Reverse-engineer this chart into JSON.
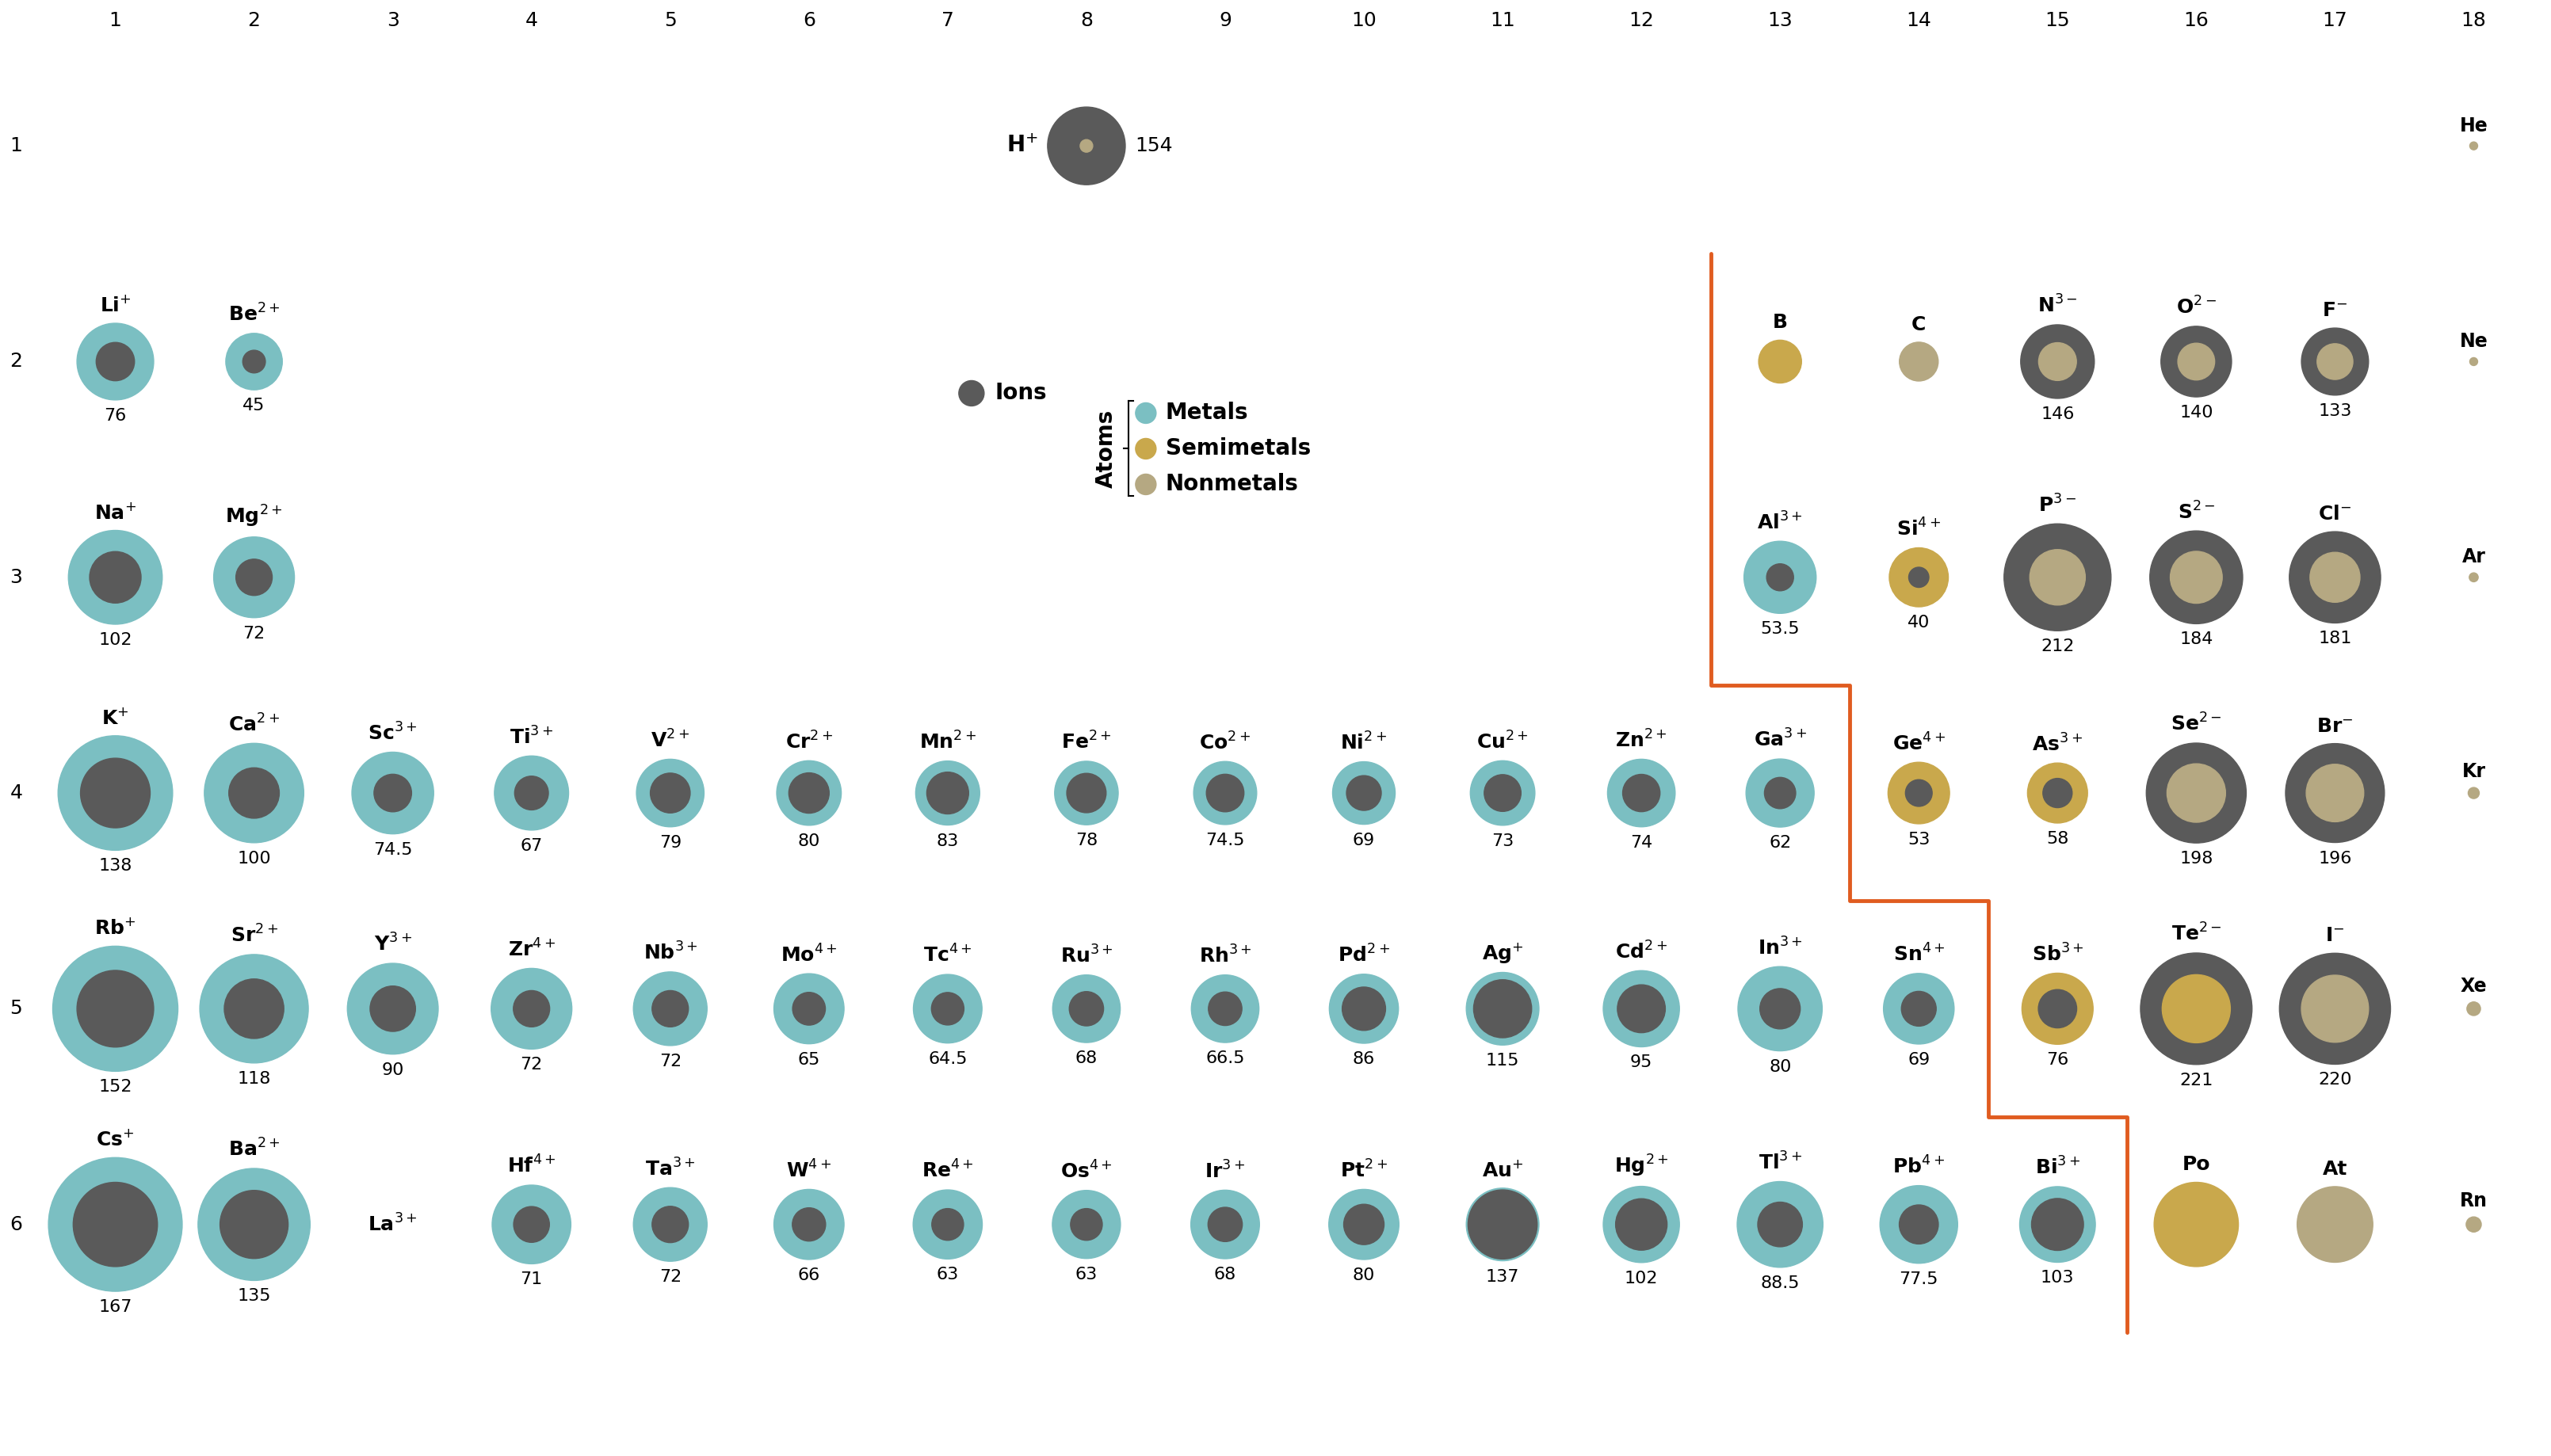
{
  "bg_color": "#ffffff",
  "ion_color": "#5a5a5a",
  "metal_atom_color": "#7bbfc2",
  "semimetal_atom_color": "#c9a84c",
  "nonmetal_atom_color": "#b5a882",
  "col_headers": [
    "1",
    "2",
    "3",
    "4",
    "5",
    "6",
    "7",
    "8",
    "9",
    "10",
    "11",
    "12",
    "13",
    "14",
    "15",
    "16",
    "17",
    "18"
  ],
  "row_headers": [
    "1",
    "2",
    "3",
    "4",
    "5",
    "6"
  ],
  "elements": [
    {
      "symbol": "H",
      "charge": "+",
      "col": 8,
      "row": 1,
      "ion_r": 154,
      "atom_r": 25,
      "type": "nonmetal",
      "special_h": true
    },
    {
      "symbol": "He",
      "charge": "",
      "col": 18,
      "row": 1,
      "ion_r": 0,
      "atom_r": 31,
      "type": "nonmetal",
      "noble": true
    },
    {
      "symbol": "Li",
      "charge": "+",
      "col": 1,
      "row": 2,
      "ion_r": 76,
      "atom_r": 152,
      "type": "metal"
    },
    {
      "symbol": "Be",
      "charge": "2+",
      "col": 2,
      "row": 2,
      "ion_r": 45,
      "atom_r": 112,
      "type": "metal"
    },
    {
      "symbol": "B",
      "charge": "",
      "col": 13,
      "row": 2,
      "ion_r": 0,
      "atom_r": 85,
      "type": "semimetal",
      "atom_only": true
    },
    {
      "symbol": "C",
      "charge": "",
      "col": 14,
      "row": 2,
      "ion_r": 0,
      "atom_r": 77,
      "type": "nonmetal",
      "atom_only": true
    },
    {
      "symbol": "N",
      "charge": "3−",
      "col": 15,
      "row": 2,
      "ion_r": 146,
      "atom_r": 75,
      "type": "nonmetal"
    },
    {
      "symbol": "O",
      "charge": "2−",
      "col": 16,
      "row": 2,
      "ion_r": 140,
      "atom_r": 73,
      "type": "nonmetal"
    },
    {
      "symbol": "F",
      "charge": "−",
      "col": 17,
      "row": 2,
      "ion_r": 133,
      "atom_r": 71,
      "type": "nonmetal"
    },
    {
      "symbol": "Ne",
      "charge": "",
      "col": 18,
      "row": 2,
      "ion_r": 0,
      "atom_r": 38,
      "type": "nonmetal",
      "noble": true
    },
    {
      "symbol": "Na",
      "charge": "+",
      "col": 1,
      "row": 3,
      "ion_r": 102,
      "atom_r": 186,
      "type": "metal"
    },
    {
      "symbol": "Mg",
      "charge": "2+",
      "col": 2,
      "row": 3,
      "ion_r": 72,
      "atom_r": 160,
      "type": "metal"
    },
    {
      "symbol": "Al",
      "charge": "3+",
      "col": 13,
      "row": 3,
      "ion_r": 53.5,
      "atom_r": 143,
      "type": "metal"
    },
    {
      "symbol": "Si",
      "charge": "4+",
      "col": 14,
      "row": 3,
      "ion_r": 40,
      "atom_r": 117,
      "type": "semimetal"
    },
    {
      "symbol": "P",
      "charge": "3−",
      "col": 15,
      "row": 3,
      "ion_r": 212,
      "atom_r": 110,
      "type": "nonmetal"
    },
    {
      "symbol": "S",
      "charge": "2−",
      "col": 16,
      "row": 3,
      "ion_r": 184,
      "atom_r": 103,
      "type": "nonmetal"
    },
    {
      "symbol": "Cl",
      "charge": "−",
      "col": 17,
      "row": 3,
      "ion_r": 181,
      "atom_r": 99,
      "type": "nonmetal"
    },
    {
      "symbol": "Ar",
      "charge": "",
      "col": 18,
      "row": 3,
      "ion_r": 0,
      "atom_r": 71,
      "type": "nonmetal",
      "noble": true
    },
    {
      "symbol": "K",
      "charge": "+",
      "col": 1,
      "row": 4,
      "ion_r": 138,
      "atom_r": 227,
      "type": "metal"
    },
    {
      "symbol": "Ca",
      "charge": "2+",
      "col": 2,
      "row": 4,
      "ion_r": 100,
      "atom_r": 197,
      "type": "metal"
    },
    {
      "symbol": "Sc",
      "charge": "3+",
      "col": 3,
      "row": 4,
      "ion_r": 74.5,
      "atom_r": 162,
      "type": "metal"
    },
    {
      "symbol": "Ti",
      "charge": "3+",
      "col": 4,
      "row": 4,
      "ion_r": 67,
      "atom_r": 147,
      "type": "metal"
    },
    {
      "symbol": "V",
      "charge": "2+",
      "col": 5,
      "row": 4,
      "ion_r": 79,
      "atom_r": 134,
      "type": "metal"
    },
    {
      "symbol": "Cr",
      "charge": "2+",
      "col": 6,
      "row": 4,
      "ion_r": 80,
      "atom_r": 128,
      "type": "metal"
    },
    {
      "symbol": "Mn",
      "charge": "2+",
      "col": 7,
      "row": 4,
      "ion_r": 83,
      "atom_r": 127,
      "type": "metal"
    },
    {
      "symbol": "Fe",
      "charge": "2+",
      "col": 8,
      "row": 4,
      "ion_r": 78,
      "atom_r": 126,
      "type": "metal"
    },
    {
      "symbol": "Co",
      "charge": "2+",
      "col": 9,
      "row": 4,
      "ion_r": 74.5,
      "atom_r": 125,
      "type": "metal"
    },
    {
      "symbol": "Ni",
      "charge": "2+",
      "col": 10,
      "row": 4,
      "ion_r": 69,
      "atom_r": 124,
      "type": "metal"
    },
    {
      "symbol": "Cu",
      "charge": "2+",
      "col": 11,
      "row": 4,
      "ion_r": 73,
      "atom_r": 128,
      "type": "metal"
    },
    {
      "symbol": "Zn",
      "charge": "2+",
      "col": 12,
      "row": 4,
      "ion_r": 74,
      "atom_r": 134,
      "type": "metal"
    },
    {
      "symbol": "Ga",
      "charge": "3+",
      "col": 13,
      "row": 4,
      "ion_r": 62,
      "atom_r": 135,
      "type": "metal"
    },
    {
      "symbol": "Ge",
      "charge": "4+",
      "col": 14,
      "row": 4,
      "ion_r": 53,
      "atom_r": 122,
      "type": "semimetal"
    },
    {
      "symbol": "As",
      "charge": "3+",
      "col": 15,
      "row": 4,
      "ion_r": 58,
      "atom_r": 119,
      "type": "semimetal"
    },
    {
      "symbol": "Se",
      "charge": "2−",
      "col": 16,
      "row": 4,
      "ion_r": 198,
      "atom_r": 116,
      "type": "nonmetal"
    },
    {
      "symbol": "Br",
      "charge": "−",
      "col": 17,
      "row": 4,
      "ion_r": 196,
      "atom_r": 114,
      "type": "nonmetal"
    },
    {
      "symbol": "Kr",
      "charge": "",
      "col": 18,
      "row": 4,
      "ion_r": 0,
      "atom_r": 88,
      "type": "nonmetal",
      "noble": true
    },
    {
      "symbol": "Rb",
      "charge": "+",
      "col": 1,
      "row": 5,
      "ion_r": 152,
      "atom_r": 248,
      "type": "metal"
    },
    {
      "symbol": "Sr",
      "charge": "2+",
      "col": 2,
      "row": 5,
      "ion_r": 118,
      "atom_r": 215,
      "type": "metal"
    },
    {
      "symbol": "Y",
      "charge": "3+",
      "col": 3,
      "row": 5,
      "ion_r": 90,
      "atom_r": 180,
      "type": "metal"
    },
    {
      "symbol": "Zr",
      "charge": "4+",
      "col": 4,
      "row": 5,
      "ion_r": 72,
      "atom_r": 160,
      "type": "metal"
    },
    {
      "symbol": "Nb",
      "charge": "3+",
      "col": 5,
      "row": 5,
      "ion_r": 72,
      "atom_r": 146,
      "type": "metal"
    },
    {
      "symbol": "Mo",
      "charge": "4+",
      "col": 6,
      "row": 5,
      "ion_r": 65,
      "atom_r": 139,
      "type": "metal"
    },
    {
      "symbol": "Tc",
      "charge": "4+",
      "col": 7,
      "row": 5,
      "ion_r": 64.5,
      "atom_r": 136,
      "type": "metal"
    },
    {
      "symbol": "Ru",
      "charge": "3+",
      "col": 8,
      "row": 5,
      "ion_r": 68,
      "atom_r": 134,
      "type": "metal"
    },
    {
      "symbol": "Rh",
      "charge": "3+",
      "col": 9,
      "row": 5,
      "ion_r": 66.5,
      "atom_r": 134,
      "type": "metal"
    },
    {
      "symbol": "Pd",
      "charge": "2+",
      "col": 10,
      "row": 5,
      "ion_r": 86,
      "atom_r": 137,
      "type": "metal"
    },
    {
      "symbol": "Ag",
      "charge": "+",
      "col": 11,
      "row": 5,
      "ion_r": 115,
      "atom_r": 144,
      "type": "metal"
    },
    {
      "symbol": "Cd",
      "charge": "2+",
      "col": 12,
      "row": 5,
      "ion_r": 95,
      "atom_r": 151,
      "type": "metal"
    },
    {
      "symbol": "In",
      "charge": "3+",
      "col": 13,
      "row": 5,
      "ion_r": 80,
      "atom_r": 167,
      "type": "metal"
    },
    {
      "symbol": "Sn",
      "charge": "4+",
      "col": 14,
      "row": 5,
      "ion_r": 69,
      "atom_r": 140,
      "type": "metal"
    },
    {
      "symbol": "Sb",
      "charge": "3+",
      "col": 15,
      "row": 5,
      "ion_r": 76,
      "atom_r": 141,
      "type": "semimetal"
    },
    {
      "symbol": "Te",
      "charge": "2−",
      "col": 16,
      "row": 5,
      "ion_r": 221,
      "atom_r": 135,
      "type": "semimetal"
    },
    {
      "symbol": "I",
      "charge": "−",
      "col": 17,
      "row": 5,
      "ion_r": 220,
      "atom_r": 133,
      "type": "nonmetal"
    },
    {
      "symbol": "Xe",
      "charge": "",
      "col": 18,
      "row": 5,
      "ion_r": 0,
      "atom_r": 108,
      "type": "nonmetal",
      "noble": true
    },
    {
      "symbol": "Cs",
      "charge": "+",
      "col": 1,
      "row": 6,
      "ion_r": 167,
      "atom_r": 265,
      "type": "metal"
    },
    {
      "symbol": "Ba",
      "charge": "2+",
      "col": 2,
      "row": 6,
      "ion_r": 135,
      "atom_r": 222,
      "type": "metal"
    },
    {
      "symbol": "La",
      "charge": "3+",
      "col": 3,
      "row": 6,
      "ion_r": 0,
      "atom_r": 0,
      "type": "metal",
      "label_only": true
    },
    {
      "symbol": "Hf",
      "charge": "4+",
      "col": 4,
      "row": 6,
      "ion_r": 71,
      "atom_r": 156,
      "type": "metal"
    },
    {
      "symbol": "Ta",
      "charge": "3+",
      "col": 5,
      "row": 6,
      "ion_r": 72,
      "atom_r": 146,
      "type": "metal"
    },
    {
      "symbol": "W",
      "charge": "4+",
      "col": 6,
      "row": 6,
      "ion_r": 66,
      "atom_r": 139,
      "type": "metal"
    },
    {
      "symbol": "Re",
      "charge": "4+",
      "col": 7,
      "row": 6,
      "ion_r": 63,
      "atom_r": 137,
      "type": "metal"
    },
    {
      "symbol": "Os",
      "charge": "4+",
      "col": 8,
      "row": 6,
      "ion_r": 63,
      "atom_r": 135,
      "type": "metal"
    },
    {
      "symbol": "Ir",
      "charge": "3+",
      "col": 9,
      "row": 6,
      "ion_r": 68,
      "atom_r": 136,
      "type": "metal"
    },
    {
      "symbol": "Pt",
      "charge": "2+",
      "col": 10,
      "row": 6,
      "ion_r": 80,
      "atom_r": 139,
      "type": "metal"
    },
    {
      "symbol": "Au",
      "charge": "+",
      "col": 11,
      "row": 6,
      "ion_r": 137,
      "atom_r": 144,
      "type": "metal"
    },
    {
      "symbol": "Hg",
      "charge": "2+",
      "col": 12,
      "row": 6,
      "ion_r": 102,
      "atom_r": 151,
      "type": "metal"
    },
    {
      "symbol": "Tl",
      "charge": "3+",
      "col": 13,
      "row": 6,
      "ion_r": 88.5,
      "atom_r": 170,
      "type": "metal"
    },
    {
      "symbol": "Pb",
      "charge": "4+",
      "col": 14,
      "row": 6,
      "ion_r": 77.5,
      "atom_r": 154,
      "type": "metal"
    },
    {
      "symbol": "Bi",
      "charge": "3+",
      "col": 15,
      "row": 6,
      "ion_r": 103,
      "atom_r": 150,
      "type": "metal"
    },
    {
      "symbol": "Po",
      "charge": "",
      "col": 16,
      "row": 6,
      "ion_r": 0,
      "atom_r": 167,
      "type": "semimetal",
      "atom_only": true
    },
    {
      "symbol": "At",
      "charge": "",
      "col": 17,
      "row": 6,
      "ion_r": 0,
      "atom_r": 150,
      "type": "nonmetal",
      "atom_only": true
    },
    {
      "symbol": "Rn",
      "charge": "",
      "col": 18,
      "row": 6,
      "ion_r": 0,
      "atom_r": 120,
      "type": "nonmetal",
      "noble": true
    }
  ]
}
